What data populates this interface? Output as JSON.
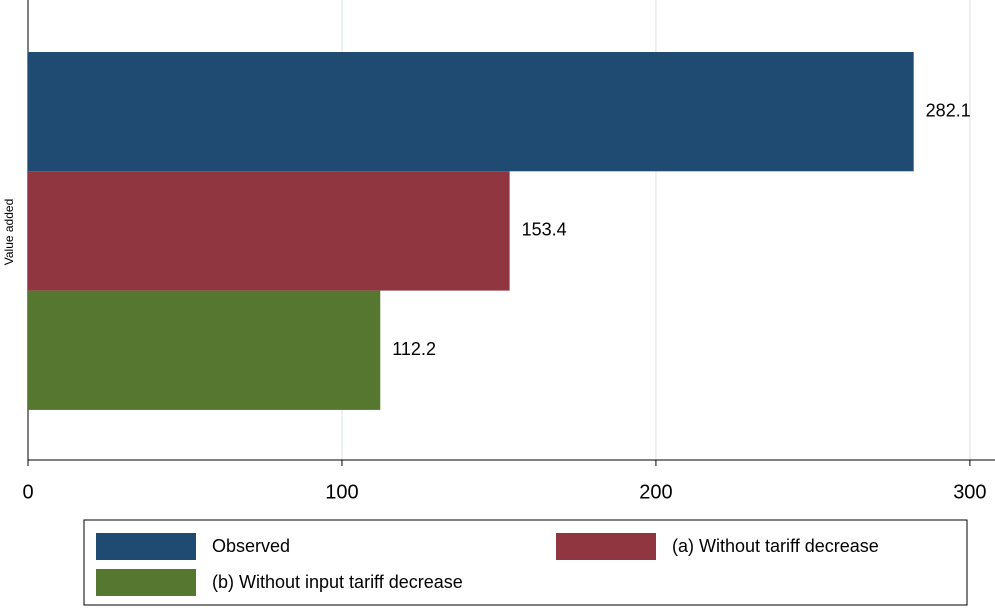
{
  "chart_data": {
    "type": "bar",
    "orientation": "horizontal",
    "y_label": "Value added",
    "series": [
      {
        "name": "Observed",
        "color": "#1f4a72",
        "values": [
          282.1
        ]
      },
      {
        "name": "(a) Without tariff decrease",
        "color": "#903640",
        "values": [
          153.4
        ]
      },
      {
        "name": "(b) Without input tariff decrease",
        "color": "#56772f",
        "values": [
          112.2
        ]
      }
    ],
    "xlim": [
      0,
      308
    ],
    "xticks": [
      0,
      100,
      200,
      300
    ],
    "grid": true,
    "legend": "bottom"
  }
}
